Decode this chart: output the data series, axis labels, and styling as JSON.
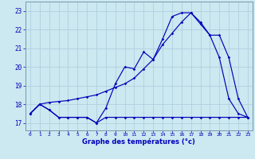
{
  "xlabel": "Graphe des températures (°c)",
  "bg_color": "#cce8f0",
  "line_color": "#0000bb",
  "grid_color": "#aaccdd",
  "xlim": [
    -0.5,
    23.5
  ],
  "ylim": [
    16.6,
    23.5
  ],
  "yticks": [
    17,
    18,
    19,
    20,
    21,
    22,
    23
  ],
  "xticks": [
    0,
    1,
    2,
    3,
    4,
    5,
    6,
    7,
    8,
    9,
    10,
    11,
    12,
    13,
    14,
    15,
    16,
    17,
    18,
    19,
    20,
    21,
    22,
    23
  ],
  "line1_x": [
    0,
    1,
    2,
    3,
    4,
    5,
    6,
    7,
    8,
    9,
    10,
    11,
    12,
    13,
    14,
    15,
    16,
    17,
    18,
    19,
    20,
    21,
    22,
    23
  ],
  "line1_y": [
    17.5,
    18.0,
    17.7,
    17.3,
    17.3,
    17.3,
    17.3,
    17.0,
    17.3,
    17.3,
    17.3,
    17.3,
    17.3,
    17.3,
    17.3,
    17.3,
    17.3,
    17.3,
    17.3,
    17.3,
    17.3,
    17.3,
    17.3,
    17.3
  ],
  "line2_x": [
    0,
    1,
    2,
    3,
    4,
    5,
    6,
    7,
    8,
    9,
    10,
    11,
    12,
    13,
    14,
    15,
    16,
    17,
    18,
    19,
    20,
    21,
    22,
    23
  ],
  "line2_y": [
    17.5,
    18.0,
    18.1,
    18.15,
    18.2,
    18.3,
    18.4,
    18.5,
    18.7,
    18.9,
    19.1,
    19.4,
    19.9,
    20.4,
    21.2,
    21.8,
    22.4,
    22.9,
    22.4,
    21.7,
    21.7,
    20.5,
    18.3,
    17.3
  ],
  "line3_x": [
    0,
    1,
    2,
    3,
    4,
    5,
    6,
    7,
    8,
    9,
    10,
    11,
    12,
    13,
    14,
    15,
    16,
    17,
    18,
    19,
    20,
    21,
    22,
    23
  ],
  "line3_y": [
    17.5,
    18.0,
    17.7,
    17.3,
    17.3,
    17.3,
    17.3,
    17.0,
    17.8,
    19.1,
    20.0,
    19.9,
    20.8,
    20.4,
    21.5,
    22.7,
    22.9,
    22.9,
    22.3,
    21.7,
    20.5,
    18.3,
    17.5,
    17.3
  ]
}
